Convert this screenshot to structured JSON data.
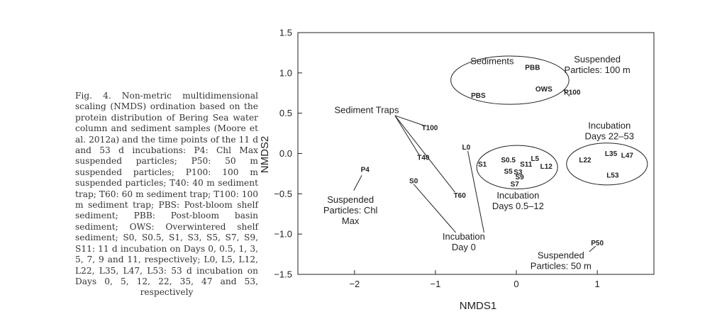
{
  "caption": "Fig. 4. Non-metric multidimensional scaling (NMDS) ordination based on the protein distribution of Bering Sea water column and sediment samples (Moore et al. 2012a) and the time points of the 11 d and 53 d in­cubations: P4: Chl Max suspended parti­cles; P50: 50 m suspended particles; P100: 100 m suspended particles; T40: 40 m sedi­ment trap; T60: 60 m sediment trap; T100: 100 m sediment trap; PBS: Post-bloom shelf sediment; PBB: Post-bloom basin sediment; OWS: Overwintered shelf sediment; S0, S0.5, S1, S3, S5, S7, S9, S11: 11 d incubation on Days 0, 0.5, 1, 3, 5, 7, 9 and 11, respec­tively; L0, L5, L12, L22, L35, L47, L53: 53 d incubation on Days 0, 5, 12, 22, 35, 47 and 53, respectively",
  "chart_data": {
    "type": "scatter",
    "title": "",
    "xlabel": "NMDS1",
    "ylabel": "NMDS2",
    "xlim": [
      -2.7,
      1.7
    ],
    "ylim": [
      -1.5,
      1.5
    ],
    "xticks": [
      -2,
      -1,
      0,
      1
    ],
    "xtick_labels": [
      "−2",
      "−1",
      "0",
      "1"
    ],
    "yticks": [
      1.5,
      1.0,
      0.5,
      0.0,
      -0.5,
      -1.0,
      -1.5
    ],
    "ytick_labels": [
      "1.5",
      "1.0",
      "0.5",
      "0.0",
      "−0.5",
      "−1.0",
      "−1.5"
    ],
    "points": [
      {
        "label": "PBB",
        "x": 0.2,
        "y": 1.07
      },
      {
        "label": "PBS",
        "x": -0.47,
        "y": 0.72
      },
      {
        "label": "OWS",
        "x": 0.34,
        "y": 0.8
      },
      {
        "label": "P100",
        "x": 0.69,
        "y": 0.76
      },
      {
        "label": "T100",
        "x": -1.07,
        "y": 0.32
      },
      {
        "label": "T40",
        "x": -1.15,
        "y": -0.05
      },
      {
        "label": "L0",
        "x": -0.62,
        "y": 0.08
      },
      {
        "label": "P4",
        "x": -1.87,
        "y": -0.2
      },
      {
        "label": "S0",
        "x": -1.27,
        "y": -0.34
      },
      {
        "label": "T60",
        "x": -0.7,
        "y": -0.52
      },
      {
        "label": "S1",
        "x": -0.42,
        "y": -0.13
      },
      {
        "label": "S0.5",
        "x": -0.1,
        "y": -0.08
      },
      {
        "label": "S11",
        "x": 0.12,
        "y": -0.13
      },
      {
        "label": "L5",
        "x": 0.23,
        "y": -0.06
      },
      {
        "label": "L12",
        "x": 0.37,
        "y": -0.16
      },
      {
        "label": "S5",
        "x": -0.1,
        "y": -0.22
      },
      {
        "label": "S3",
        "x": 0.02,
        "y": -0.23
      },
      {
        "label": "S9",
        "x": 0.04,
        "y": -0.29
      },
      {
        "label": "S7",
        "x": -0.02,
        "y": -0.38
      },
      {
        "label": "L22",
        "x": 0.85,
        "y": -0.08
      },
      {
        "label": "L35",
        "x": 1.17,
        "y": 0.0
      },
      {
        "label": "L47",
        "x": 1.37,
        "y": -0.02
      },
      {
        "label": "L53",
        "x": 1.19,
        "y": -0.27
      },
      {
        "label": "P50",
        "x": 1.0,
        "y": -1.11
      }
    ],
    "ellipses": [
      {
        "group": "Sediments",
        "cx": -0.08,
        "cy": 0.91,
        "rx": 0.73,
        "ry": 0.3
      },
      {
        "group": "Incubation Days 0.5–12",
        "cx": 0.01,
        "cy": -0.17,
        "rx": 0.5,
        "ry": 0.27
      },
      {
        "group": "Incubation Days 22–53",
        "cx": 1.12,
        "cy": -0.13,
        "rx": 0.5,
        "ry": 0.26
      }
    ],
    "annotations": [
      {
        "text": [
          "Sediments"
        ],
        "x": -0.3,
        "y": 1.11
      },
      {
        "text": [
          "Suspended",
          "Particles: 100 m"
        ],
        "x": 1.0,
        "y": 1.13
      },
      {
        "text": [
          "Sediment Traps"
        ],
        "x": -1.85,
        "y": 0.5
      },
      {
        "text": [
          "Incubation",
          "Days 22–53"
        ],
        "x": 1.15,
        "y": 0.31
      },
      {
        "text": [
          "Incubation",
          "Days 0.5–12"
        ],
        "x": 0.02,
        "y": -0.56
      },
      {
        "text": [
          "Suspended",
          "Particles: Chl",
          "Max"
        ],
        "x": -2.05,
        "y": -0.61
      },
      {
        "text": [
          "Incubation",
          "Day 0"
        ],
        "x": -0.65,
        "y": -1.07
      },
      {
        "text": [
          "Suspended",
          "Particles: 50 m"
        ],
        "x": 0.55,
        "y": -1.3
      }
    ],
    "connectors": [
      {
        "from": [
          -1.5,
          0.47
        ],
        "to": [
          -1.12,
          0.34
        ]
      },
      {
        "from": [
          -1.5,
          0.47
        ],
        "to": [
          -1.2,
          -0.02
        ]
      },
      {
        "from": [
          -1.5,
          0.47
        ],
        "to": [
          -0.76,
          -0.48
        ]
      },
      {
        "from": [
          -1.91,
          -0.27
        ],
        "to": [
          -2.01,
          -0.46
        ]
      },
      {
        "from": [
          -1.27,
          -0.38
        ],
        "to": [
          -0.75,
          -0.98
        ]
      },
      {
        "from": [
          -0.6,
          0.03
        ],
        "to": [
          -0.4,
          -0.98
        ]
      },
      {
        "from": [
          0.66,
          0.71
        ],
        "to": [
          0.58,
          0.79
        ]
      },
      {
        "from": [
          0.98,
          -1.15
        ],
        "to": [
          0.9,
          -1.22
        ]
      }
    ]
  }
}
